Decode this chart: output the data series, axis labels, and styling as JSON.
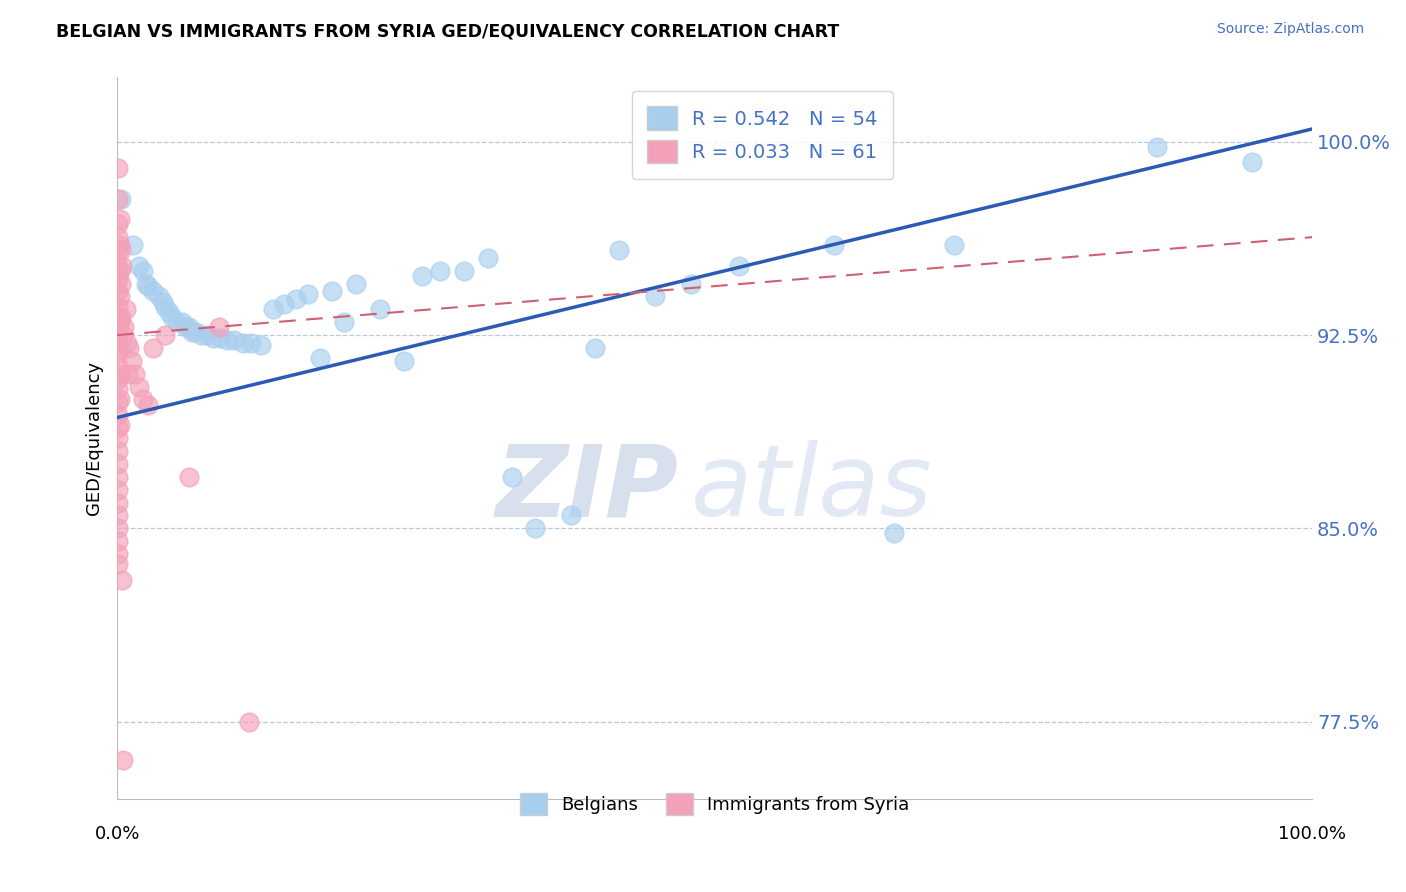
{
  "title": "BELGIAN VS IMMIGRANTS FROM SYRIA GED/EQUIVALENCY CORRELATION CHART",
  "source": "Source: ZipAtlas.com",
  "ylabel": "GED/Equivalency",
  "ylim": [
    0.745,
    1.025
  ],
  "xlim": [
    0.0,
    1.0
  ],
  "watermark_zip": "ZIP",
  "watermark_atlas": "atlas",
  "legend_label1": "Belgians",
  "legend_label2": "Immigrants from Syria",
  "R1": 0.542,
  "N1": 54,
  "R2": 0.033,
  "N2": 61,
  "blue_color": "#A8CEEE",
  "pink_color": "#F4A0B8",
  "blue_line_color": "#2C5BB5",
  "pink_line_color": "#D06070",
  "blue_line": {
    "x0": 0.0,
    "y0": 0.893,
    "x1": 1.0,
    "y1": 1.005
  },
  "pink_line": {
    "x0": 0.0,
    "y0": 0.925,
    "x1": 1.0,
    "y1": 0.963
  },
  "blue_scatter": [
    [
      0.003,
      0.978
    ],
    [
      0.013,
      0.96
    ],
    [
      0.018,
      0.952
    ],
    [
      0.022,
      0.95
    ],
    [
      0.024,
      0.945
    ],
    [
      0.026,
      0.944
    ],
    [
      0.03,
      0.942
    ],
    [
      0.035,
      0.94
    ],
    [
      0.038,
      0.938
    ],
    [
      0.04,
      0.936
    ],
    [
      0.043,
      0.934
    ],
    [
      0.046,
      0.932
    ],
    [
      0.05,
      0.93
    ],
    [
      0.054,
      0.93
    ],
    [
      0.058,
      0.928
    ],
    [
      0.06,
      0.928
    ],
    [
      0.063,
      0.926
    ],
    [
      0.066,
      0.926
    ],
    [
      0.07,
      0.925
    ],
    [
      0.075,
      0.925
    ],
    [
      0.08,
      0.924
    ],
    [
      0.086,
      0.924
    ],
    [
      0.092,
      0.923
    ],
    [
      0.098,
      0.923
    ],
    [
      0.105,
      0.922
    ],
    [
      0.112,
      0.922
    ],
    [
      0.12,
      0.921
    ],
    [
      0.13,
      0.935
    ],
    [
      0.14,
      0.937
    ],
    [
      0.15,
      0.939
    ],
    [
      0.16,
      0.941
    ],
    [
      0.17,
      0.916
    ],
    [
      0.18,
      0.942
    ],
    [
      0.19,
      0.93
    ],
    [
      0.2,
      0.945
    ],
    [
      0.22,
      0.935
    ],
    [
      0.24,
      0.915
    ],
    [
      0.255,
      0.948
    ],
    [
      0.27,
      0.95
    ],
    [
      0.29,
      0.95
    ],
    [
      0.31,
      0.955
    ],
    [
      0.33,
      0.87
    ],
    [
      0.35,
      0.85
    ],
    [
      0.38,
      0.855
    ],
    [
      0.4,
      0.92
    ],
    [
      0.42,
      0.958
    ],
    [
      0.45,
      0.94
    ],
    [
      0.48,
      0.945
    ],
    [
      0.52,
      0.952
    ],
    [
      0.6,
      0.96
    ],
    [
      0.65,
      0.848
    ],
    [
      0.7,
      0.96
    ],
    [
      0.87,
      0.998
    ],
    [
      0.95,
      0.992
    ]
  ],
  "pink_scatter": [
    [
      0.001,
      0.99
    ],
    [
      0.001,
      0.978
    ],
    [
      0.001,
      0.968
    ],
    [
      0.001,
      0.963
    ],
    [
      0.001,
      0.958
    ],
    [
      0.001,
      0.952
    ],
    [
      0.001,
      0.947
    ],
    [
      0.001,
      0.942
    ],
    [
      0.001,
      0.936
    ],
    [
      0.001,
      0.932
    ],
    [
      0.001,
      0.927
    ],
    [
      0.001,
      0.922
    ],
    [
      0.001,
      0.918
    ],
    [
      0.001,
      0.913
    ],
    [
      0.001,
      0.908
    ],
    [
      0.001,
      0.904
    ],
    [
      0.001,
      0.899
    ],
    [
      0.001,
      0.894
    ],
    [
      0.001,
      0.889
    ],
    [
      0.001,
      0.885
    ],
    [
      0.001,
      0.88
    ],
    [
      0.001,
      0.875
    ],
    [
      0.001,
      0.87
    ],
    [
      0.001,
      0.865
    ],
    [
      0.001,
      0.86
    ],
    [
      0.001,
      0.855
    ],
    [
      0.001,
      0.85
    ],
    [
      0.001,
      0.845
    ],
    [
      0.001,
      0.84
    ],
    [
      0.001,
      0.836
    ],
    [
      0.002,
      0.97
    ],
    [
      0.002,
      0.96
    ],
    [
      0.002,
      0.95
    ],
    [
      0.002,
      0.94
    ],
    [
      0.002,
      0.93
    ],
    [
      0.002,
      0.92
    ],
    [
      0.002,
      0.91
    ],
    [
      0.002,
      0.9
    ],
    [
      0.002,
      0.89
    ],
    [
      0.003,
      0.958
    ],
    [
      0.003,
      0.945
    ],
    [
      0.003,
      0.932
    ],
    [
      0.004,
      0.952
    ],
    [
      0.004,
      0.83
    ],
    [
      0.005,
      0.925
    ],
    [
      0.005,
      0.76
    ],
    [
      0.006,
      0.928
    ],
    [
      0.007,
      0.935
    ],
    [
      0.008,
      0.922
    ],
    [
      0.009,
      0.91
    ],
    [
      0.01,
      0.92
    ],
    [
      0.012,
      0.915
    ],
    [
      0.015,
      0.91
    ],
    [
      0.018,
      0.905
    ],
    [
      0.022,
      0.9
    ],
    [
      0.026,
      0.898
    ],
    [
      0.03,
      0.92
    ],
    [
      0.04,
      0.925
    ],
    [
      0.06,
      0.87
    ],
    [
      0.085,
      0.928
    ],
    [
      0.11,
      0.775
    ]
  ]
}
